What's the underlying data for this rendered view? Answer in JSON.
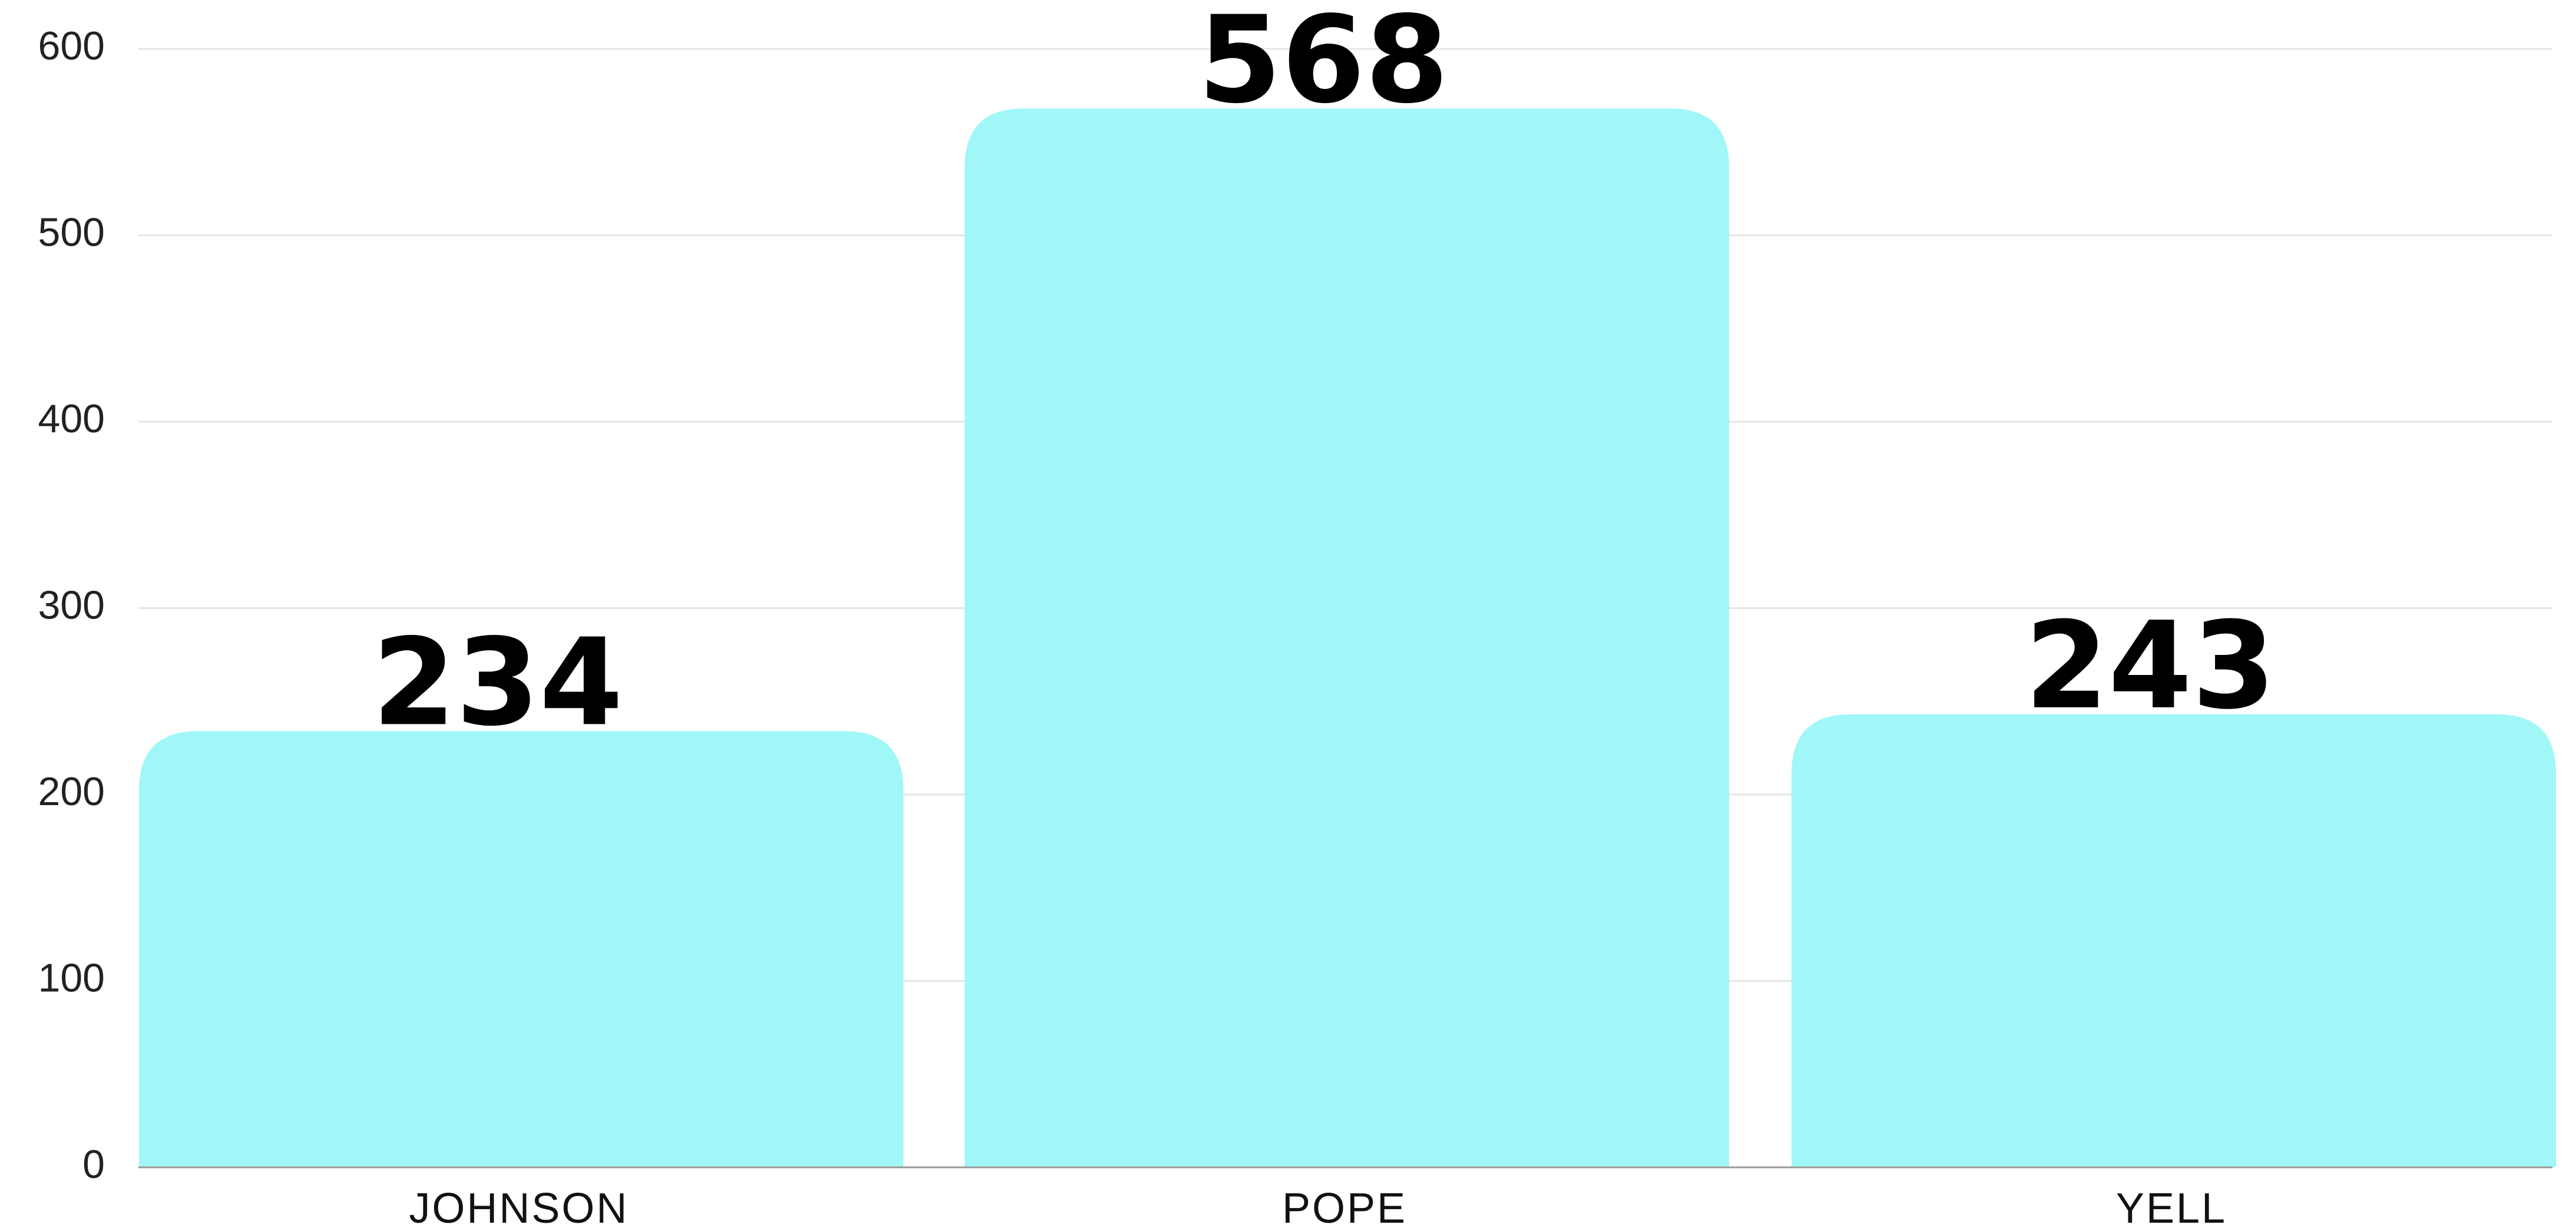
{
  "chart_data": {
    "type": "bar",
    "categories": [
      "JOHNSON",
      "POPE",
      "YELL"
    ],
    "values": [
      234,
      568,
      243
    ],
    "data_labels": [
      "234",
      "568",
      "243"
    ],
    "ylim": [
      0,
      600
    ],
    "yticks": [
      "0",
      "100",
      "200",
      "300",
      "400",
      "500",
      "600"
    ],
    "ytick_values": [
      0,
      100,
      200,
      300,
      400,
      500,
      600
    ],
    "grid": true,
    "legend": "none",
    "bar_color": "#a1f7f7",
    "title": "",
    "xlabel": "",
    "ylabel": ""
  }
}
